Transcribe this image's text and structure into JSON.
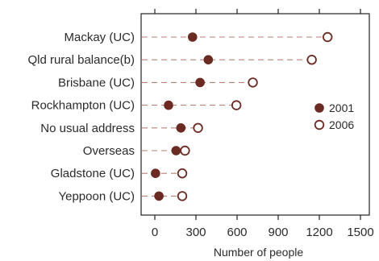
{
  "chart_data": {
    "type": "scatter",
    "subtype": "dot-plot",
    "categories": [
      "Mackay (UC)",
      "Qld rural balance(b)",
      "Brisbane (UC)",
      "Rockhampton (UC)",
      "No usual address",
      "Overseas",
      "Gladstone (UC)",
      "Yeppoon (UC)"
    ],
    "series": [
      {
        "name": "2001",
        "marker": "filled-circle",
        "values": [
          275,
          390,
          330,
          100,
          190,
          155,
          5,
          30
        ]
      },
      {
        "name": "2006",
        "marker": "open-circle",
        "values": [
          1260,
          1145,
          715,
          595,
          315,
          220,
          200,
          200
        ]
      }
    ],
    "x_ticks": [
      "0",
      "300",
      "600",
      "900",
      "1200",
      "1500"
    ],
    "xlim": [
      -60,
      1600
    ],
    "xlabel": "Number of people",
    "ylabel": "",
    "title": "",
    "legend_position": "right",
    "grid": false,
    "colors": {
      "marker": "#6b2a22",
      "connector": "#b98279",
      "axis": "#222222",
      "text": "#2a2a2a"
    }
  }
}
